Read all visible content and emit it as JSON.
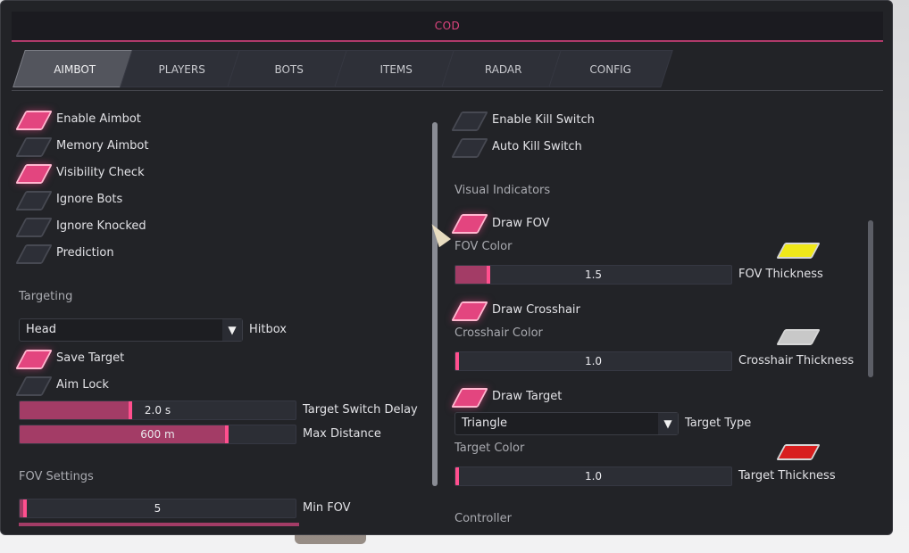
{
  "window": {
    "title": "COD"
  },
  "tabs": [
    {
      "label": "AIMBOT",
      "active": true
    },
    {
      "label": "PLAYERS",
      "active": false
    },
    {
      "label": "BOTS",
      "active": false
    },
    {
      "label": "ITEMS",
      "active": false
    },
    {
      "label": "RADAR",
      "active": false
    },
    {
      "label": "CONFIG",
      "active": false
    }
  ],
  "left": {
    "toggles": [
      {
        "label": "Enable Aimbot",
        "checked": true
      },
      {
        "label": "Memory Aimbot",
        "checked": false
      },
      {
        "label": "Visibility Check",
        "checked": true
      },
      {
        "label": "Ignore Bots",
        "checked": false
      },
      {
        "label": "Ignore Knocked",
        "checked": false
      },
      {
        "label": "Prediction",
        "checked": false
      }
    ],
    "targeting": {
      "heading": "Targeting",
      "hitbox_value": "Head",
      "hitbox_label": "Hitbox",
      "save_target": {
        "label": "Save Target",
        "checked": true
      },
      "aim_lock": {
        "label": "Aim Lock",
        "checked": false
      },
      "switch_delay": {
        "value_text": "2.0 s",
        "label": "Target Switch Delay",
        "fraction": 0.4
      },
      "max_distance": {
        "value_text": "600 m",
        "label": "Max Distance",
        "fraction": 0.75
      }
    },
    "fov": {
      "heading": "FOV Settings",
      "min_fov": {
        "value_text": "5",
        "label": "Min FOV",
        "fraction": 0.02
      }
    }
  },
  "right": {
    "kill_switch": [
      {
        "label": "Enable Kill Switch",
        "checked": false
      },
      {
        "label": "Auto Kill Switch",
        "checked": false
      }
    ],
    "visual": {
      "heading": "Visual Indicators",
      "draw_fov": {
        "label": "Draw FOV",
        "checked": true
      },
      "fov_color_label": "FOV Color",
      "fov_color": "#f0e819",
      "fov_thickness": {
        "value_text": "1.5",
        "label": "FOV Thickness",
        "fraction": 0.12
      },
      "draw_crosshair": {
        "label": "Draw Crosshair",
        "checked": true
      },
      "crosshair_color_label": "Crosshair Color",
      "crosshair_color": "#c8c8c8",
      "crosshair_thickness": {
        "value_text": "1.0",
        "label": "Crosshair Thickness",
        "fraction": 0.0
      },
      "draw_target": {
        "label": "Draw Target",
        "checked": true
      },
      "target_type_value": "Triangle",
      "target_type_label": "Target Type",
      "target_color_label": "Target Color",
      "target_color": "#d81e1e",
      "target_thickness": {
        "value_text": "1.0",
        "label": "Target Thickness",
        "fraction": 0.0
      }
    },
    "controller_heading": "Controller"
  },
  "colors": {
    "accent": "#e3457f",
    "title": "#e0457f",
    "background": "#222327"
  }
}
